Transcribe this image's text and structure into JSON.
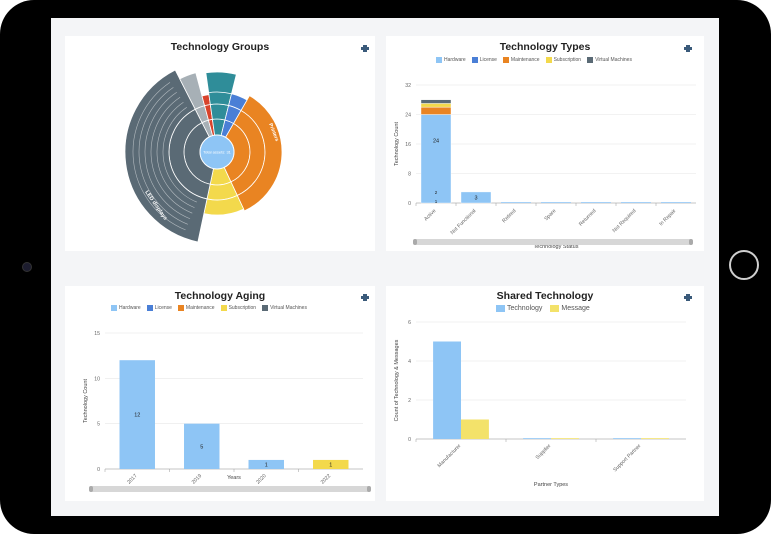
{
  "colors": {
    "hardware": "#8ec5f5",
    "license": "#4a7fd6",
    "maintenance": "#e98422",
    "subscription": "#f3d94c",
    "vm": "#5a6a75",
    "message": "#f3e26a",
    "grid": "#e6e6e6",
    "axis": "#999999",
    "text": "#444444"
  },
  "icons": {
    "print": "printer-icon"
  },
  "groups": {
    "title": "Technology Groups",
    "center_label": "Total assets: 31"
  },
  "types": {
    "title": "Technology Types",
    "legend": [
      "Hardware",
      "License",
      "Maintenance",
      "Subscription",
      "Virtual Machines"
    ],
    "xlabel": "Technology Status",
    "ylabel": "Technology Count"
  },
  "aging": {
    "title": "Technology Aging",
    "legend": [
      "Hardware",
      "License",
      "Maintenance",
      "Subscription",
      "Virtual Machines"
    ],
    "xlabel": "Years",
    "ylabel": "Technology Count"
  },
  "shared": {
    "title": "Shared Technology",
    "legend": [
      "Technology",
      "Message"
    ],
    "xlabel": "Partner Types",
    "ylabel": "Count of Technology & Messages"
  },
  "chart_data": [
    {
      "type": "pie",
      "title": "Technology Groups",
      "center_label": "Total assets: 31",
      "series": [
        {
          "name": "",
          "values": [
            21,
            6,
            2,
            1,
            1
          ]
        }
      ],
      "ring_labels": [
        "LED displays",
        "Printers"
      ]
    },
    {
      "type": "bar",
      "title": "Technology Types",
      "categories": [
        "Active",
        "Not Functional",
        "Retired",
        "Spare",
        "Returned",
        "Not Required",
        "In Repair"
      ],
      "xlabel": "Technology Status",
      "ylabel": "Technology Count",
      "ylim": [
        0,
        32
      ],
      "yticks": [
        0,
        8,
        16,
        24,
        32
      ],
      "stacked": true,
      "series": [
        {
          "name": "Hardware",
          "values": [
            24,
            3,
            0,
            0,
            0,
            0,
            0
          ]
        },
        {
          "name": "License",
          "values": [
            0,
            0,
            0,
            0,
            0,
            0,
            0
          ]
        },
        {
          "name": "Maintenance",
          "values": [
            2,
            0,
            0,
            0,
            0,
            0,
            0
          ]
        },
        {
          "name": "Subscription",
          "values": [
            1,
            0,
            0,
            0,
            0,
            0,
            0
          ]
        },
        {
          "name": "Virtual Machines",
          "values": [
            1,
            0,
            0,
            0,
            0,
            0,
            0
          ]
        }
      ],
      "data_labels": [
        "24",
        "3",
        "2",
        "1"
      ]
    },
    {
      "type": "bar",
      "title": "Technology Aging",
      "categories": [
        "2017",
        "2019",
        "2020",
        "2022"
      ],
      "xlabel": "Years",
      "ylabel": "Technology Count",
      "ylim": [
        0,
        15
      ],
      "yticks": [
        0,
        5,
        10,
        15
      ],
      "series": [
        {
          "name": "Hardware",
          "values": [
            12,
            5,
            1,
            0
          ]
        },
        {
          "name": "Subscription",
          "values": [
            0,
            0,
            0,
            1
          ]
        }
      ],
      "data_labels": [
        "12",
        "5",
        "1",
        "1"
      ]
    },
    {
      "type": "bar",
      "title": "Shared Technology",
      "categories": [
        "Manufacturer",
        "Supplier",
        "Support Partner"
      ],
      "xlabel": "Partner Types",
      "ylabel": "Count of Technology & Messages",
      "ylim": [
        0,
        6
      ],
      "yticks": [
        0,
        2,
        4,
        6
      ],
      "series": [
        {
          "name": "Technology",
          "values": [
            5,
            0,
            0
          ]
        },
        {
          "name": "Message",
          "values": [
            1,
            0,
            0
          ]
        }
      ]
    }
  ]
}
